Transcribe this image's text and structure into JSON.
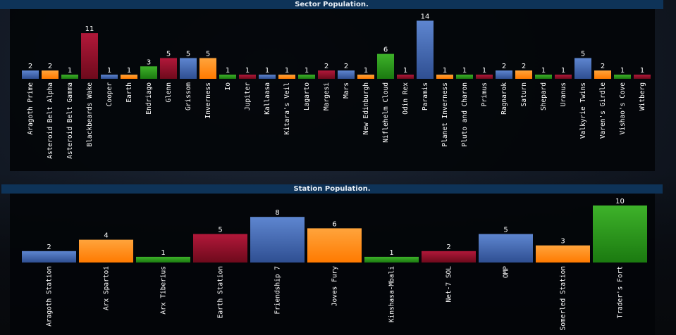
{
  "colors": {
    "blue": "#4a6fb8",
    "orange": "#ff9020",
    "green": "#2b9b1c",
    "red": "#991028",
    "header_bg": "#0e3358"
  },
  "chart_data": [
    {
      "type": "bar",
      "title": "Sector Population.",
      "categories": [
        "Aragoth Prime",
        "Asteroid Belt Alpha",
        "Asteroid Belt Gamma",
        "Blackbeards Wake",
        "Cooper",
        "Earth",
        "Endriago",
        "Glenn",
        "Grissom",
        "Inverness",
        "Io",
        "Jupiter",
        "Kallaasa",
        "Kitara's Veil",
        "Lagarto",
        "Margesi",
        "Mars",
        "New Edinburgh",
        "Niflehelm Cloud",
        "Odin Rex",
        "Paramis",
        "Planet Inverness",
        "Pluto and Charon",
        "Primus",
        "Ragnarok",
        "Saturn",
        "Shepard",
        "Uranus",
        "Valkyrie Twins",
        "Varen's Girdle",
        "Vishao's Cove",
        "Witberg"
      ],
      "values": [
        2,
        2,
        1,
        11,
        1,
        1,
        3,
        5,
        5,
        5,
        1,
        1,
        1,
        1,
        1,
        2,
        2,
        1,
        6,
        1,
        14,
        1,
        1,
        1,
        2,
        2,
        1,
        1,
        5,
        2,
        1,
        1
      ],
      "xlabel": "",
      "ylabel": "",
      "grid": false
    },
    {
      "type": "bar",
      "title": "Station Population.",
      "categories": [
        "Aragoth Station",
        "Arx Spartoi",
        "Arx Tiberius",
        "Earth Station",
        "Friendship 7",
        "Joves Fury",
        "Kinshasa-Mbali",
        "Net-7 SOL",
        "OMP",
        "Somerled Station",
        "Trader's Fort"
      ],
      "values": [
        2,
        4,
        1,
        5,
        8,
        6,
        1,
        2,
        5,
        3,
        10
      ],
      "xlabel": "",
      "ylabel": "",
      "grid": false
    }
  ]
}
